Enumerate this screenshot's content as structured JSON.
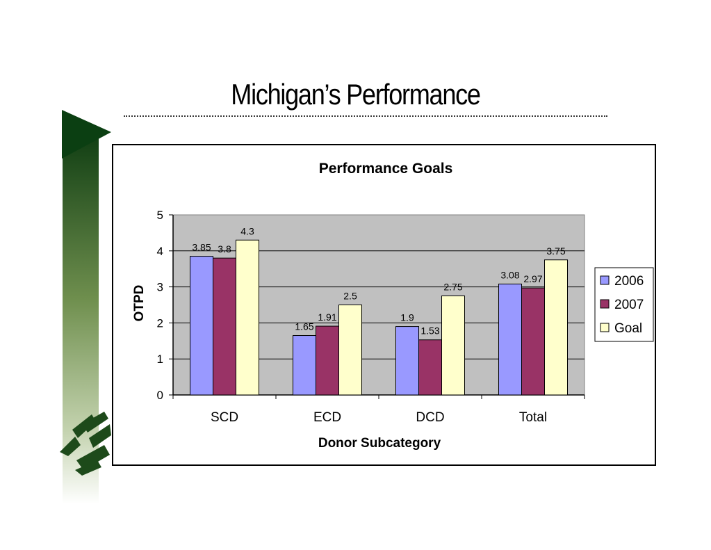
{
  "slide": {
    "title": "Michigan’s Performance"
  },
  "chart_data": {
    "type": "bar",
    "title": "Performance Goals",
    "xlabel": "Donor Subcategory",
    "ylabel": "OTPD",
    "categories": [
      "SCD",
      "ECD",
      "DCD",
      "Total"
    ],
    "series": [
      {
        "name": "2006",
        "values": [
          3.85,
          1.65,
          1.9,
          3.08
        ],
        "color": "#9999ff"
      },
      {
        "name": "2007",
        "values": [
          3.8,
          1.91,
          1.53,
          2.97
        ],
        "color": "#993366"
      },
      {
        "name": "Goal",
        "values": [
          4.3,
          2.5,
          2.75,
          3.75
        ],
        "color": "#ffffcc"
      }
    ],
    "ylim": [
      0,
      5
    ],
    "yticks": [
      0,
      1,
      2,
      3,
      4,
      5
    ],
    "grid": true,
    "plot_background": "#c0c0c0",
    "legend_position": "right"
  }
}
